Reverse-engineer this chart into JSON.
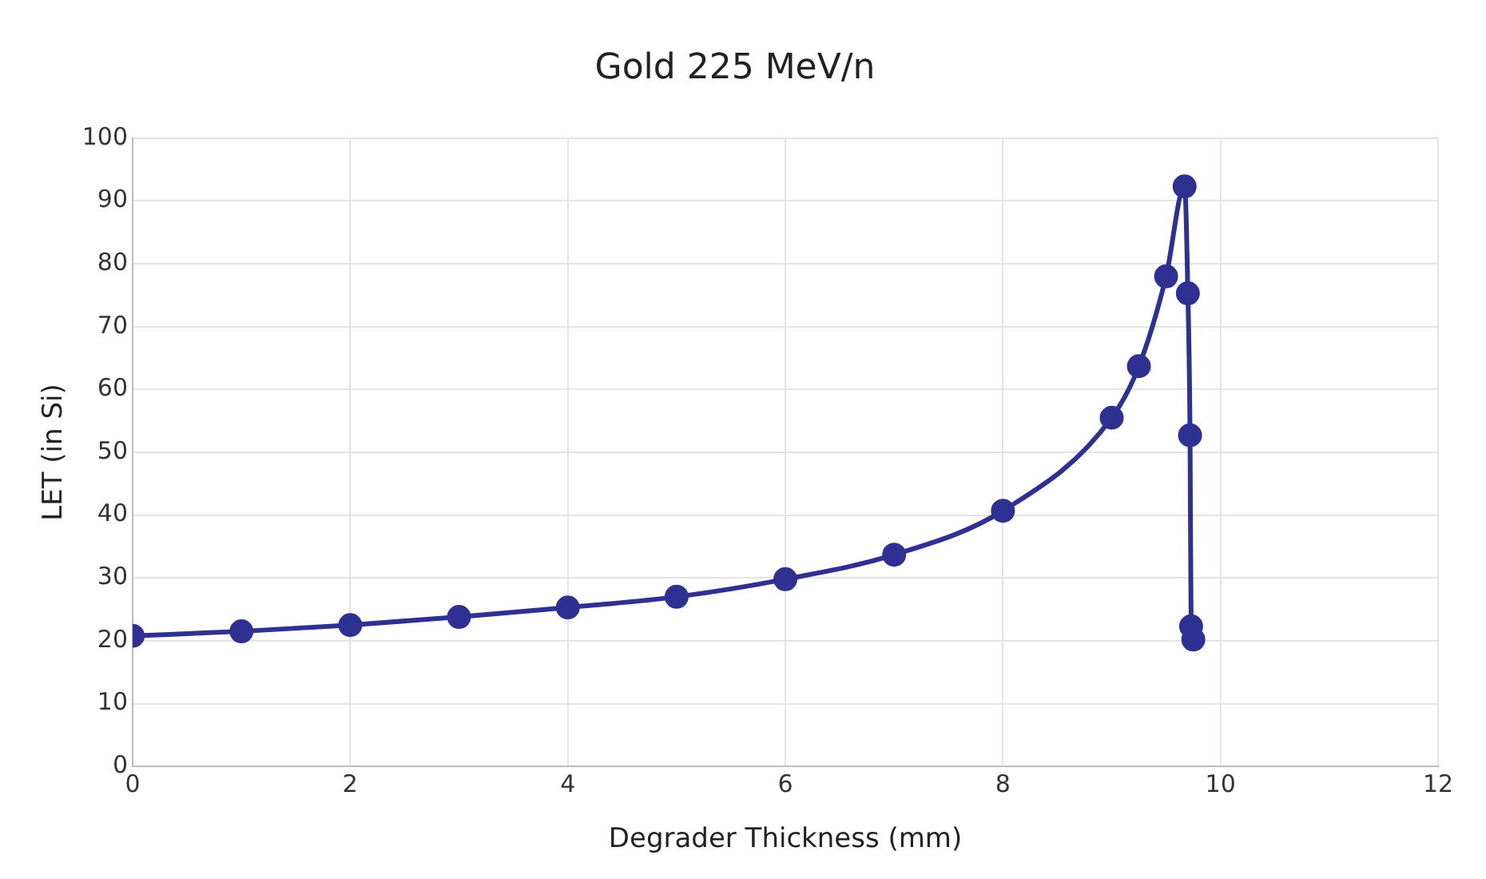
{
  "chart_data": {
    "type": "line",
    "title": "Gold 225 MeV/n",
    "xlabel": "Degrader Thickness (mm)",
    "ylabel": "LET (in Si)",
    "x": [
      0,
      1,
      2,
      3,
      4,
      5,
      6,
      7,
      8,
      9,
      9.25,
      9.5,
      9.67,
      9.7,
      9.72,
      9.73,
      9.75
    ],
    "series": [
      {
        "color": "#2e3192",
        "values": [
          20.8,
          21.5,
          22.5,
          23.8,
          25.3,
          27,
          29.8,
          33.7,
          40.7,
          55.5,
          63.7,
          78,
          92.3,
          75.3,
          52.7,
          22.3,
          20.2
        ]
      }
    ],
    "xlim": [
      0,
      12
    ],
    "xticks": [
      0,
      2,
      4,
      6,
      8,
      10,
      12
    ],
    "ylim": [
      0,
      100
    ],
    "yticks": [
      0,
      10,
      20,
      30,
      40,
      50,
      60,
      70,
      80,
      90,
      100
    ],
    "grid": true,
    "legend": false,
    "marker": "circle",
    "line_style": "solid"
  }
}
